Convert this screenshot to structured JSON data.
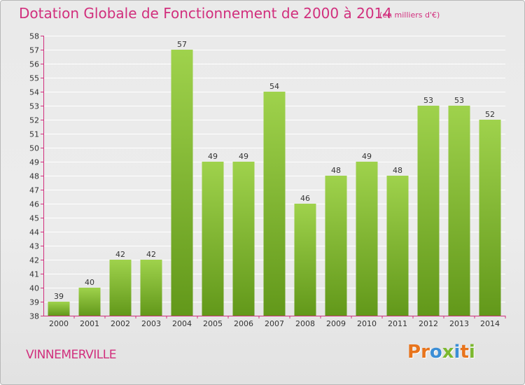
{
  "header": {
    "title": "Dotation Globale de Fonctionnement de 2000 à 2014",
    "unit": "(en milliers d'€)"
  },
  "footer": {
    "commune": "VINNEMERVILLE",
    "logo": "Proxiti",
    "logo_colors": [
      "#e8741c",
      "#e8741c",
      "#3b8ed6",
      "#7cb82f",
      "#3b8ed6",
      "#e8741c",
      "#7cb82f"
    ]
  },
  "colors": {
    "bar_light": "#9fd24c",
    "bar_dark": "#62981a",
    "title": "#d12f7d",
    "axis": "#d12f7d",
    "grid": "#ffffff"
  },
  "chart_data": {
    "type": "bar",
    "title": "Dotation Globale de Fonctionnement de 2000 à 2014",
    "subtitle": "(en milliers d'€)",
    "categories": [
      "2000",
      "2001",
      "2002",
      "2003",
      "2004",
      "2005",
      "2006",
      "2007",
      "2008",
      "2009",
      "2010",
      "2011",
      "2012",
      "2013",
      "2014"
    ],
    "values": [
      39,
      40,
      42,
      42,
      57,
      49,
      49,
      54,
      46,
      48,
      49,
      48,
      53,
      53,
      52
    ],
    "ylim": [
      38,
      58
    ],
    "yticks": [
      38,
      39,
      40,
      41,
      42,
      43,
      44,
      45,
      46,
      47,
      48,
      49,
      50,
      51,
      52,
      53,
      54,
      55,
      56,
      57,
      58
    ],
    "grid": true,
    "xlabel": "",
    "ylabel": ""
  }
}
